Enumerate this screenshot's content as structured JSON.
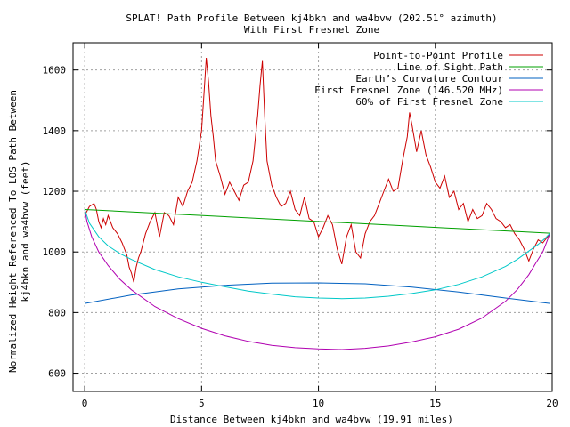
{
  "chart_data": {
    "type": "line",
    "title": "SPLAT! Path Profile Between kj4bkn and wa4bvw (202.51° azimuth)",
    "subtitle": "With First Fresnel Zone",
    "xlabel": "Distance Between kj4bkn and wa4bvw (19.91 miles)",
    "ylabel_line1": "Normalized Height Referenced To LOS Path Between",
    "ylabel_line2": "kj4bkn and wa4bvw (feet)",
    "xlim": [
      -0.5,
      20
    ],
    "ylim": [
      540,
      1690
    ],
    "xticks": [
      0,
      5,
      10,
      15,
      20
    ],
    "yticks": [
      600,
      800,
      1000,
      1200,
      1400,
      1600
    ],
    "grid": true,
    "legend_position": "top-right",
    "series": [
      {
        "name": "Point-to-Point Profile",
        "color": "#cc0000",
        "x": [
          0,
          0.2,
          0.4,
          0.5,
          0.6,
          0.7,
          0.8,
          0.9,
          1.0,
          1.2,
          1.4,
          1.6,
          1.8,
          1.9,
          2.0,
          2.1,
          2.2,
          2.3,
          2.4,
          2.6,
          2.8,
          3.0,
          3.2,
          3.4,
          3.6,
          3.8,
          4.0,
          4.2,
          4.4,
          4.6,
          4.8,
          5.0,
          5.1,
          5.2,
          5.3,
          5.4,
          5.5,
          5.6,
          5.8,
          6.0,
          6.2,
          6.4,
          6.6,
          6.8,
          7.0,
          7.2,
          7.4,
          7.5,
          7.6,
          7.7,
          7.8,
          8.0,
          8.2,
          8.4,
          8.6,
          8.8,
          9.0,
          9.2,
          9.4,
          9.6,
          9.8,
          10.0,
          10.2,
          10.4,
          10.6,
          10.8,
          11.0,
          11.2,
          11.4,
          11.6,
          11.8,
          12.0,
          12.2,
          12.4,
          12.6,
          12.8,
          13.0,
          13.2,
          13.4,
          13.6,
          13.8,
          13.9,
          14.0,
          14.2,
          14.4,
          14.6,
          14.8,
          15.0,
          15.2,
          15.4,
          15.6,
          15.8,
          16.0,
          16.2,
          16.4,
          16.6,
          16.8,
          17.0,
          17.2,
          17.4,
          17.6,
          17.8,
          18.0,
          18.2,
          18.4,
          18.6,
          18.8,
          19.0,
          19.2,
          19.4,
          19.6,
          19.8,
          19.91
        ],
        "values": [
          1120,
          1150,
          1160,
          1140,
          1100,
          1080,
          1110,
          1090,
          1120,
          1080,
          1060,
          1030,
          990,
          950,
          930,
          900,
          950,
          980,
          1000,
          1060,
          1100,
          1130,
          1050,
          1130,
          1120,
          1090,
          1180,
          1150,
          1200,
          1230,
          1300,
          1400,
          1520,
          1640,
          1560,
          1450,
          1380,
          1300,
          1250,
          1190,
          1230,
          1200,
          1170,
          1220,
          1230,
          1300,
          1450,
          1550,
          1630,
          1450,
          1300,
          1220,
          1180,
          1150,
          1160,
          1200,
          1140,
          1120,
          1180,
          1110,
          1100,
          1050,
          1080,
          1120,
          1090,
          1010,
          960,
          1050,
          1090,
          1000,
          980,
          1060,
          1100,
          1120,
          1160,
          1200,
          1240,
          1200,
          1210,
          1300,
          1380,
          1460,
          1420,
          1330,
          1400,
          1320,
          1280,
          1230,
          1210,
          1250,
          1180,
          1200,
          1140,
          1160,
          1100,
          1140,
          1110,
          1120,
          1160,
          1140,
          1110,
          1100,
          1080,
          1090,
          1060,
          1040,
          1010,
          970,
          1010,
          1040,
          1030,
          1050,
          1060
        ]
      },
      {
        "name": "Line of Sight Path",
        "color": "#00a000",
        "x": [
          0,
          19.91
        ],
        "values": [
          1140,
          1062
        ]
      },
      {
        "name": "Earth’s Curvature Contour",
        "color": "#0060c0",
        "x": [
          0,
          2,
          4,
          6,
          8,
          10,
          12,
          14,
          16,
          18,
          19.91
        ],
        "values": [
          830,
          858,
          878,
          890,
          897,
          898,
          895,
          884,
          868,
          848,
          830
        ]
      },
      {
        "name": "First Fresnel Zone (146.520 MHz)",
        "color": "#b000b0",
        "x": [
          0,
          0.1,
          0.3,
          0.6,
          1,
          1.5,
          2,
          3,
          4,
          5,
          6,
          7,
          8,
          9,
          10,
          11,
          12,
          13,
          14,
          15,
          16,
          17,
          18,
          18.5,
          19,
          19.3,
          19.6,
          19.8,
          19.91
        ],
        "values": [
          1140,
          1100,
          1050,
          1000,
          955,
          910,
          875,
          820,
          780,
          748,
          723,
          705,
          692,
          684,
          680,
          678,
          682,
          690,
          703,
          720,
          745,
          782,
          837,
          875,
          925,
          963,
          1000,
          1040,
          1062
        ]
      },
      {
        "name": "60% of First Fresnel Zone",
        "color": "#00c8c8",
        "x": [
          0,
          0.2,
          0.6,
          1,
          1.5,
          2,
          3,
          4,
          5,
          6,
          7,
          8,
          9,
          10,
          11,
          12,
          13,
          14,
          15,
          16,
          17,
          18,
          18.5,
          19,
          19.4,
          19.7,
          19.91
        ],
        "values": [
          1140,
          1095,
          1050,
          1020,
          995,
          975,
          942,
          918,
          900,
          885,
          871,
          861,
          852,
          848,
          846,
          848,
          854,
          863,
          875,
          893,
          918,
          952,
          975,
          1003,
          1025,
          1045,
          1062
        ]
      }
    ]
  }
}
